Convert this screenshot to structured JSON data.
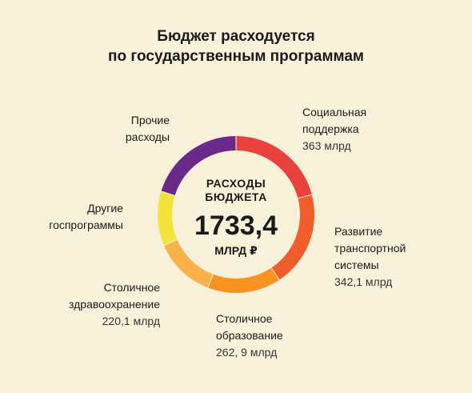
{
  "title_lines": [
    "Бюджет расходуется",
    "по государственным программам"
  ],
  "center": {
    "top_line1": "РАСХОДЫ",
    "top_line2": "БЮДЖЕТА",
    "value": "1733,4",
    "unit": "МЛРД ₽"
  },
  "labels": {
    "social": {
      "l1": "Социальная",
      "l2": "поддержка",
      "value": "363 млрд"
    },
    "transport": {
      "l1": "Развитие",
      "l2": "транспортной",
      "l3": "системы",
      "value": "342,1 млрд"
    },
    "education": {
      "l1": "Столичное",
      "l2": "образование",
      "value": "262, 9 млрд"
    },
    "health": {
      "l1": "Столичное",
      "l2": "здравоохранение",
      "value": "220,1 млрд"
    },
    "other_programs": {
      "l1": "Другие",
      "l2": "госпрограммы"
    },
    "other_expenses": {
      "l1": "Прочие",
      "l2": "расходы"
    }
  },
  "chart_data": {
    "type": "pie",
    "title": "Бюджет расходуется по государственным программам",
    "total": 1733.4,
    "unit": "млрд ₽",
    "slices": [
      {
        "label": "Социальная поддержка",
        "value": 363,
        "color": "#e8423c"
      },
      {
        "label": "Развитие транспортной системы",
        "value": 342.1,
        "color": "#f05d2b"
      },
      {
        "label": "Столичное образование",
        "value": 262.9,
        "color": "#f7931e"
      },
      {
        "label": "Столичное здравоохранение",
        "value": 220.1,
        "color": "#f9b14a"
      },
      {
        "label": "Другие госпрограммы",
        "value": 195,
        "color": "#f2e43a"
      },
      {
        "label": "Прочие расходы",
        "value": 350.3,
        "color": "#6a2a8a"
      }
    ]
  }
}
